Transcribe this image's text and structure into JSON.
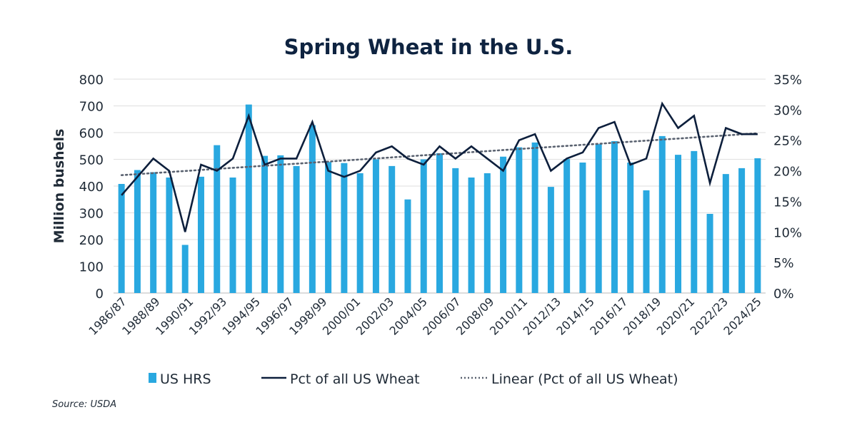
{
  "chart_data": {
    "type": "bar",
    "title": "Spring Wheat in the U.S.",
    "ylabel": "Million bushels",
    "ylim": [
      0,
      800
    ],
    "yticks": [
      "0",
      "100",
      "200",
      "300",
      "400",
      "500",
      "600",
      "700",
      "800"
    ],
    "y2lim": [
      0,
      35
    ],
    "y2ticks": [
      "0%",
      "5%",
      "10%",
      "15%",
      "20%",
      "25%",
      "30%",
      "35%"
    ],
    "grid": true,
    "legend_placement": "bottom",
    "x_tick_labels": [
      "1986/87",
      "1988/89",
      "1990/91",
      "1992/93",
      "1994/95",
      "1996/97",
      "1998/99",
      "2000/01",
      "2002/03",
      "2004/05",
      "2006/07",
      "2008/09",
      "2010/11",
      "2012/13",
      "2014/15",
      "2016/17",
      "2018/19",
      "2020/21",
      "2022/23",
      "2024/25"
    ],
    "series": [
      {
        "name": "US HRS",
        "type": "bar",
        "axis": "left",
        "color": "#29a8e0",
        "values": [
          408,
          460,
          452,
          432,
          180,
          435,
          553,
          432,
          705,
          513,
          515,
          475,
          628,
          490,
          486,
          448,
          500,
          475,
          350,
          500,
          523,
          467,
          432,
          448,
          510,
          545,
          563,
          397,
          501,
          488,
          557,
          568,
          488,
          384,
          587,
          517,
          531,
          296,
          445,
          467,
          504
        ]
      },
      {
        "name": "Pct of all US Wheat",
        "type": "line",
        "axis": "right",
        "unit": "%",
        "color": "#0d1f3c",
        "values": [
          16,
          19,
          22,
          20,
          10,
          21,
          20,
          22,
          29,
          21,
          22,
          22,
          28,
          20,
          19,
          20,
          23,
          24,
          22,
          21,
          24,
          22,
          24,
          22,
          20,
          25,
          26,
          20,
          22,
          23,
          27,
          28,
          21,
          22,
          31,
          27,
          29,
          18,
          27,
          26,
          26
        ]
      },
      {
        "name": "Linear (Pct of all US Wheat)",
        "type": "trendline",
        "axis": "right",
        "color": "#5a6270",
        "style": "dotted"
      }
    ],
    "source": "Source: USDA"
  }
}
